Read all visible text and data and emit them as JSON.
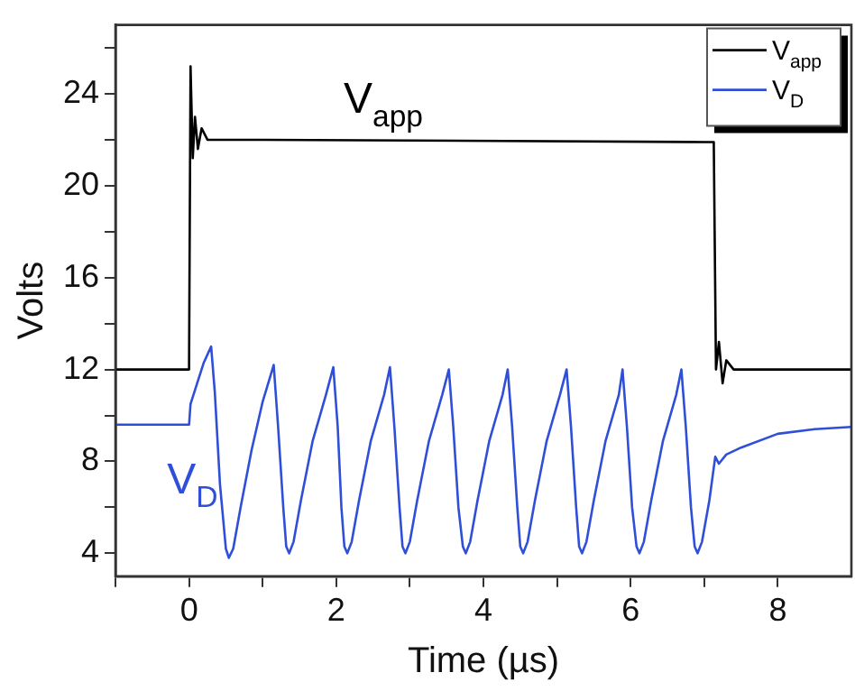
{
  "chart_data": {
    "type": "line",
    "xlabel": "Time (µs)",
    "ylabel": "Volts",
    "xlim": [
      -1,
      9
    ],
    "ylim": [
      3,
      27
    ],
    "xticks": [
      {
        "value": -1,
        "label": null
      },
      0,
      {
        "value": 1,
        "label": null
      },
      2,
      {
        "value": 3,
        "label": null
      },
      4,
      {
        "value": 5,
        "label": null
      },
      6,
      {
        "value": 7,
        "label": null
      },
      8
    ],
    "yticks": [
      4,
      {
        "value": 6,
        "label": null
      },
      8,
      {
        "value": 10,
        "label": null
      },
      12,
      {
        "value": 14,
        "label": null
      },
      16,
      {
        "value": 18,
        "label": null
      },
      20,
      {
        "value": 22,
        "label": null
      },
      24,
      {
        "value": 26,
        "label": null
      }
    ],
    "grid": false,
    "legend": "top right",
    "marker": "none",
    "line_style": "solid",
    "annotations": [
      "V$_{app}$",
      "V$_{D}$"
    ],
    "series": [
      {
        "name": "V$_{app}$",
        "color": "#000000",
        "x": [
          -1,
          -0.02,
          0,
          0.02,
          0.05,
          0.08,
          0.12,
          0.17,
          0.25,
          1,
          7.0,
          7.13,
          7.16,
          7.2,
          7.25,
          7.3,
          7.4,
          9
        ],
        "values": [
          12,
          12,
          12.2,
          25.2,
          21.2,
          23,
          21.6,
          22.5,
          22,
          22,
          21.9,
          21.9,
          12,
          13.2,
          11.4,
          12.4,
          12,
          12
        ]
      },
      {
        "name": "V$_{D}$",
        "color": "#2f4fd8",
        "x": [
          -1,
          0,
          0.02,
          0.1,
          0.2,
          0.3,
          0.35,
          0.42,
          0.5,
          0.54,
          0.6,
          0.7,
          0.85,
          1.0,
          1.15,
          1.21,
          1.28,
          1.32,
          1.36,
          1.42,
          1.52,
          1.68,
          1.86,
          1.96,
          2.02,
          2.07,
          2.11,
          2.15,
          2.21,
          2.31,
          2.47,
          2.65,
          2.73,
          2.79,
          2.86,
          2.9,
          2.94,
          3.0,
          3.1,
          3.26,
          3.44,
          3.53,
          3.59,
          3.66,
          3.72,
          3.76,
          3.82,
          3.92,
          4.08,
          4.26,
          4.33,
          4.39,
          4.46,
          4.5,
          4.54,
          4.6,
          4.7,
          4.86,
          5.04,
          5.13,
          5.19,
          5.26,
          5.3,
          5.34,
          5.4,
          5.5,
          5.66,
          5.84,
          5.89,
          5.95,
          6.02,
          6.08,
          6.12,
          6.18,
          6.28,
          6.44,
          6.62,
          6.69,
          6.75,
          6.82,
          6.87,
          6.91,
          6.97,
          7.07,
          7.15,
          7.2,
          7.3,
          7.5,
          8,
          8.5,
          9
        ],
        "values": [
          9.6,
          9.6,
          10.5,
          11.3,
          12.3,
          13,
          11,
          7,
          4.2,
          3.8,
          4.2,
          6,
          8.5,
          10.6,
          12.2,
          9.5,
          6,
          4.3,
          4,
          4.5,
          6.3,
          8.9,
          10.9,
          12.1,
          9.5,
          6,
          4.3,
          4,
          4.5,
          6.3,
          8.9,
          10.9,
          12.1,
          9.5,
          6,
          4.3,
          4,
          4.5,
          6.3,
          8.9,
          10.9,
          12,
          9.5,
          6,
          4.3,
          4,
          4.5,
          6.3,
          8.9,
          10.9,
          12,
          9.5,
          6,
          4.3,
          4,
          4.5,
          6.3,
          8.9,
          10.9,
          12,
          9.5,
          6,
          4.3,
          4,
          4.5,
          6.3,
          8.9,
          10.9,
          12,
          9.5,
          6,
          4.3,
          4,
          4.5,
          6.3,
          8.9,
          10.9,
          12,
          9.5,
          6,
          4.3,
          4,
          4.5,
          6.3,
          8.2,
          7.9,
          8.3,
          8.6,
          9.2,
          9.4,
          9.5
        ]
      }
    ]
  }
}
